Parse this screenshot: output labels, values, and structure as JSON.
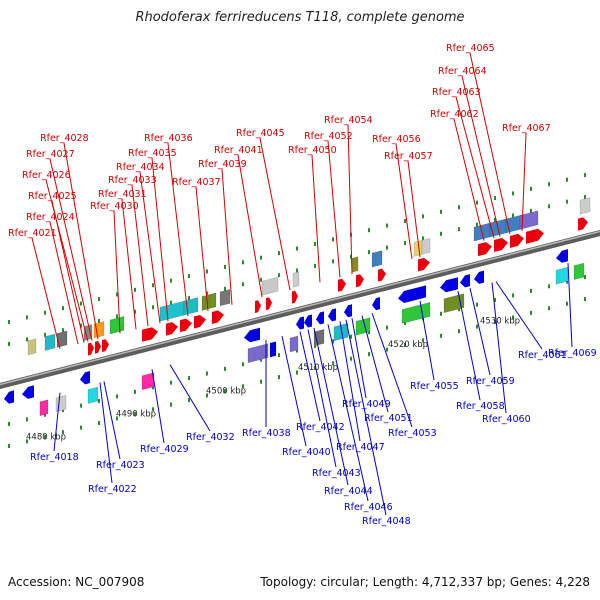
{
  "title": "Rhodoferax ferrireducens T118, complete genome",
  "footer": {
    "accession": "Accession: NC_007908",
    "summary": "Topology: circular; Length: 4,712,337 bp; Genes: 4,228"
  },
  "colors": {
    "forward": "#e8000b",
    "reverse": "#0000e0",
    "forward_label": "#d40000",
    "reverse_label": "#0000cc",
    "backbone": "#808080"
  },
  "ticks": [
    "4480 kbp",
    "4490 kbp",
    "4500 kbp",
    "4510 kbp",
    "4520 kbp",
    "4530 kbp"
  ],
  "forward_labels": [
    "Rfer_4021",
    "Rfer_4024",
    "Rfer_4025",
    "Rfer_4026",
    "Rfer_4027",
    "Rfer_4028",
    "Rfer_4030",
    "Rfer_4031",
    "Rfer_4033",
    "Rfer_4034",
    "Rfer_4035",
    "Rfer_4036",
    "Rfer_4037",
    "Rfer_4039",
    "Rfer_4041",
    "Rfer_4045",
    "Rfer_4050",
    "Rfer_4052",
    "Rfer_4054",
    "Rfer_4056",
    "Rfer_4057",
    "Rfer_4062",
    "Rfer_4063",
    "Rfer_4064",
    "Rfer_4065",
    "Rfer_4067"
  ],
  "reverse_labels": [
    "Rfer_4018",
    "Rfer_4022",
    "Rfer_4023",
    "Rfer_4029",
    "Rfer_4032",
    "Rfer_4038",
    "Rfer_4040",
    "Rfer_4042",
    "Rfer_4043",
    "Rfer_4044",
    "Rfer_4046",
    "Rfer_4047",
    "Rfer_4048",
    "Rfer_4049",
    "Rfer_4051",
    "Rfer_4053",
    "Rfer_4055",
    "Rfer_4058",
    "Rfer_4059",
    "Rfer_4060",
    "Rfer_4061",
    "Rfer_4069"
  ]
}
